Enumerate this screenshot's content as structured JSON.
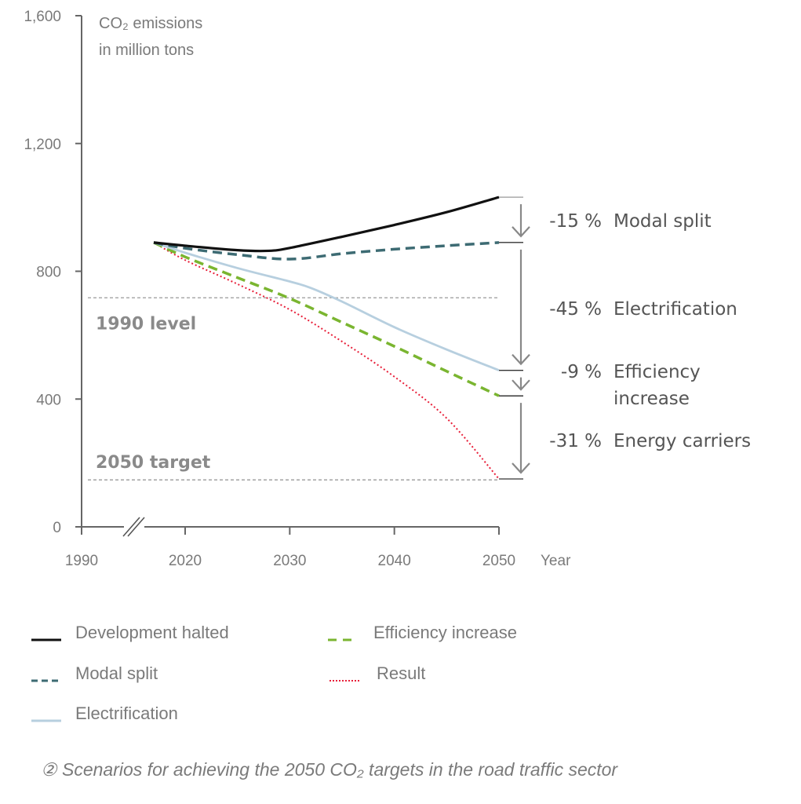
{
  "chart_data": {
    "type": "line",
    "title": "",
    "ylabel_lines": [
      "CO₂ emissions",
      "in million tons"
    ],
    "xlabel": "Year",
    "ylim": [
      0,
      1600
    ],
    "yticks": [
      0,
      400,
      800,
      1200,
      1600
    ],
    "ytick_labels": [
      "0",
      "400",
      "800",
      "1,200",
      "1,600"
    ],
    "xticks": [
      1990,
      2020,
      2030,
      2040,
      2050
    ],
    "xtick_labels": [
      "1990",
      "2020",
      "2030",
      "2040",
      "2050"
    ],
    "x_axis_break": true,
    "grid": false,
    "series": [
      {
        "name": "Development halted",
        "color": "#111111",
        "style": "solid",
        "x": [
          2017,
          2020,
          2025,
          2028,
          2030,
          2035,
          2040,
          2045,
          2050
        ],
        "y": [
          890,
          880,
          866,
          864,
          873,
          908,
          945,
          985,
          1032
        ]
      },
      {
        "name": "Modal split",
        "color": "#3d6b73",
        "style": "dashed",
        "x": [
          2017,
          2020,
          2025,
          2030,
          2035,
          2040,
          2045,
          2050
        ],
        "y": [
          890,
          872,
          852,
          838,
          855,
          869,
          880,
          890
        ]
      },
      {
        "name": "Electrification",
        "color": "#b7cfdf",
        "style": "solid",
        "x": [
          2017,
          2020,
          2025,
          2030,
          2032,
          2035,
          2040,
          2045,
          2050
        ],
        "y": [
          890,
          858,
          810,
          768,
          748,
          705,
          625,
          555,
          490
        ]
      },
      {
        "name": "Efficiency increase",
        "color": "#7ab530",
        "style": "dashed",
        "x": [
          2017,
          2020,
          2025,
          2030,
          2035,
          2040,
          2045,
          2050
        ],
        "y": [
          890,
          845,
          780,
          715,
          640,
          565,
          487,
          410
        ]
      },
      {
        "name": "Result",
        "color": "#e8203a",
        "style": "dotted",
        "x": [
          2017,
          2020,
          2025,
          2030,
          2035,
          2040,
          2045,
          2050
        ],
        "y": [
          890,
          835,
          760,
          680,
          580,
          470,
          340,
          150
        ]
      }
    ],
    "reference_lines": [
      {
        "label": "1990 level",
        "value": 717
      },
      {
        "label": "2050 target",
        "value": 147
      }
    ],
    "annotations": [
      {
        "pct": "-15 %",
        "label": "Modal split",
        "from": 1032,
        "to": 890
      },
      {
        "pct": "-45 %",
        "label": "Electrification",
        "from": 890,
        "to": 490
      },
      {
        "pct": "-9 %",
        "label_lines": [
          "Efficiency",
          "increase"
        ],
        "from": 490,
        "to": 410
      },
      {
        "pct": "-31 %",
        "label": "Energy carriers",
        "from": 410,
        "to": 150
      }
    ],
    "legend": {
      "placement": "bottom",
      "entries": [
        "Development halted",
        "Efficiency increase",
        "Modal split",
        "Result",
        "Electrification"
      ]
    },
    "caption": {
      "marker": "②",
      "text": "Scenarios for achieving the 2050 CO₂ targets in the road traffic sector"
    }
  }
}
